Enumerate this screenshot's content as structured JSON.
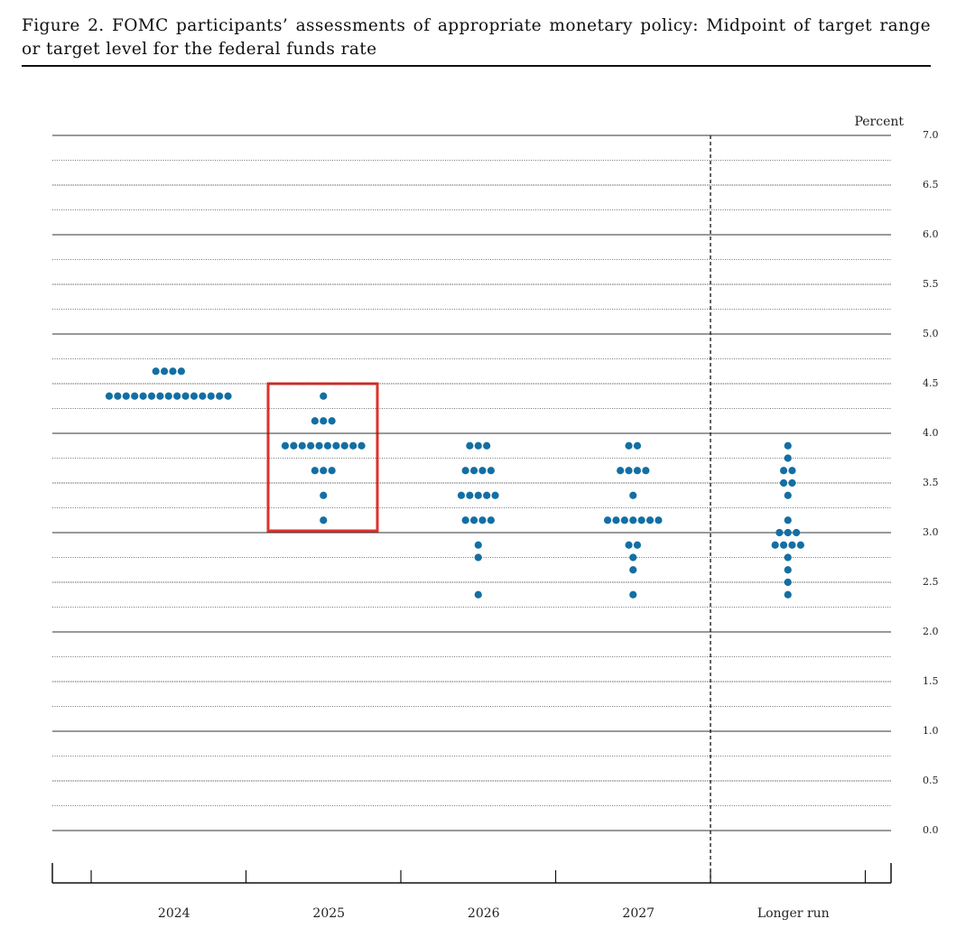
{
  "chart_data": {
    "type": "dot",
    "title": "Figure 2.  FOMC participants’ assessments of appropriate monetary policy: Midpoint of target range or target level for the federal funds rate",
    "ylabel": "Percent",
    "categories": [
      "2024",
      "2025",
      "2026",
      "2027",
      "Longer run"
    ],
    "dots": [
      [
        4.625,
        4.625,
        4.625,
        4.625,
        4.375,
        4.375,
        4.375,
        4.375,
        4.375,
        4.375,
        4.375,
        4.375,
        4.375,
        4.375,
        4.375,
        4.375,
        4.375,
        4.375,
        4.375
      ],
      [
        4.375,
        4.125,
        4.125,
        4.125,
        3.875,
        3.875,
        3.875,
        3.875,
        3.875,
        3.875,
        3.875,
        3.875,
        3.875,
        3.875,
        3.625,
        3.625,
        3.625,
        3.375,
        3.125
      ],
      [
        3.875,
        3.875,
        3.875,
        3.625,
        3.625,
        3.625,
        3.625,
        3.375,
        3.375,
        3.375,
        3.375,
        3.375,
        3.125,
        3.125,
        3.125,
        3.125,
        2.875,
        2.75,
        2.375
      ],
      [
        3.875,
        3.875,
        3.625,
        3.625,
        3.625,
        3.625,
        3.375,
        3.125,
        3.125,
        3.125,
        3.125,
        3.125,
        3.125,
        3.125,
        2.875,
        2.875,
        2.75,
        2.625,
        2.375
      ],
      [
        3.875,
        3.75,
        3.625,
        3.625,
        3.5,
        3.5,
        3.375,
        3.125,
        3.0,
        3.0,
        3.0,
        2.875,
        2.875,
        2.875,
        2.875,
        2.75,
        2.625,
        2.5,
        2.375
      ]
    ],
    "color": "#136fa3",
    "ylim": [
      0,
      7
    ],
    "yticks": [
      {
        "value": 0,
        "label": "0.0"
      },
      0.5,
      {
        "value": 1,
        "label": "1.0"
      },
      1.5,
      {
        "value": 2,
        "label": "2.0"
      },
      2.5,
      {
        "value": 3,
        "label": "3.0"
      },
      3.5,
      {
        "value": 4,
        "label": "4.0"
      },
      4.5,
      {
        "value": 5,
        "label": "5.0"
      },
      5.5,
      {
        "value": 6,
        "label": "6.0"
      },
      6.5,
      {
        "value": 7,
        "label": "7.0"
      }
    ],
    "grid": true
  }
}
